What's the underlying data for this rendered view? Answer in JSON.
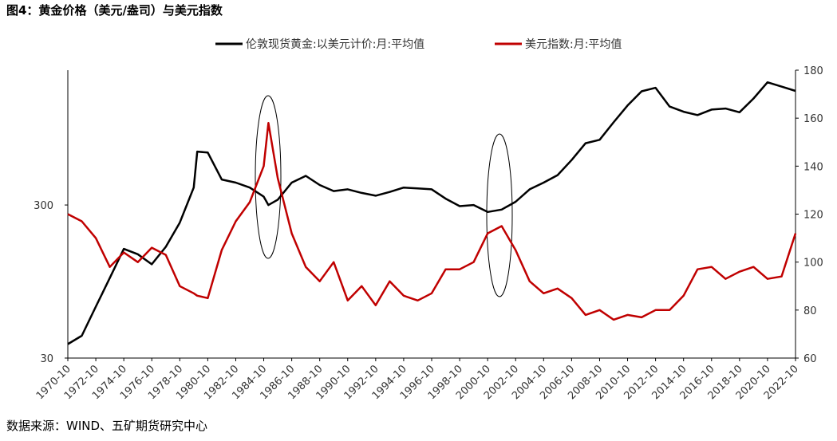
{
  "chart_data": {
    "type": "line",
    "title": "图4：黄金价格（美元/盎司）与美元指数",
    "source": "数据来源：WIND、五矿期货研究中心",
    "x": [
      "1970-10",
      "1971-10",
      "1972-10",
      "1973-10",
      "1974-10",
      "1975-10",
      "1976-10",
      "1977-10",
      "1978-10",
      "1979-10",
      "1980-01",
      "1980-10",
      "1981-10",
      "1982-10",
      "1983-10",
      "1984-10",
      "1985-02",
      "1985-10",
      "1986-10",
      "1987-10",
      "1988-10",
      "1989-10",
      "1990-10",
      "1991-10",
      "1992-10",
      "1993-10",
      "1994-10",
      "1995-10",
      "1996-10",
      "1997-10",
      "1998-10",
      "1999-10",
      "2000-10",
      "2001-10",
      "2002-10",
      "2003-10",
      "2004-10",
      "2005-10",
      "2006-10",
      "2007-10",
      "2008-10",
      "2009-10",
      "2010-10",
      "2011-10",
      "2012-10",
      "2013-10",
      "2014-10",
      "2015-10",
      "2016-10",
      "2017-10",
      "2018-10",
      "2019-10",
      "2020-10",
      "2021-10",
      "2022-10"
    ],
    "xlim": [
      "1970-10",
      "2022-10"
    ],
    "xticks": [
      "1970-10",
      "1972-10",
      "1974-10",
      "1976-10",
      "1978-10",
      "1980-10",
      "1982-10",
      "1984-10",
      "1986-10",
      "1988-10",
      "1990-10",
      "1992-10",
      "1994-10",
      "1996-10",
      "1998-10",
      "2000-10",
      "2002-10",
      "2004-10",
      "2006-10",
      "2008-10",
      "2010-10",
      "2012-10",
      "2014-10",
      "2016-10",
      "2018-10",
      "2020-10",
      "2022-10"
    ],
    "ylim": [
      30,
      2280
    ],
    "ylog": true,
    "yticks": [
      30,
      300
    ],
    "y2lim": [
      60,
      180
    ],
    "y2ticks": [
      60,
      80,
      100,
      120,
      140,
      160,
      180
    ],
    "series": [
      {
        "name": "伦敦现货黄金:以美元计价:月:平均值",
        "color": "#000000",
        "values": [
          37,
          42,
          65,
          100,
          155,
          143,
          123,
          160,
          230,
          390,
          670,
          660,
          440,
          420,
          390,
          340,
          300,
          325,
          420,
          465,
          405,
          370,
          380,
          360,
          345,
          365,
          390,
          385,
          380,
          330,
          295,
          300,
          270,
          280,
          315,
          380,
          420,
          470,
          590,
          760,
          800,
          1040,
          1340,
          1660,
          1750,
          1320,
          1220,
          1160,
          1260,
          1280,
          1210,
          1490,
          1900,
          1780,
          1670
        ]
      },
      {
        "name": "美元指数:月:平均值",
        "color": "#c00000",
        "axis": "y2",
        "values": [
          120,
          117,
          110,
          98,
          104,
          100,
          106,
          103,
          90,
          87,
          86,
          85,
          105,
          117,
          125,
          140,
          158,
          135,
          112,
          98,
          92,
          100,
          84,
          90,
          82,
          92,
          86,
          84,
          87,
          97,
          97,
          100,
          112,
          115,
          105,
          92,
          87,
          89,
          85,
          78,
          80,
          76,
          78,
          77,
          80,
          80,
          86,
          97,
          98,
          93,
          96,
          98,
          93,
          94,
          112
        ]
      }
    ]
  }
}
